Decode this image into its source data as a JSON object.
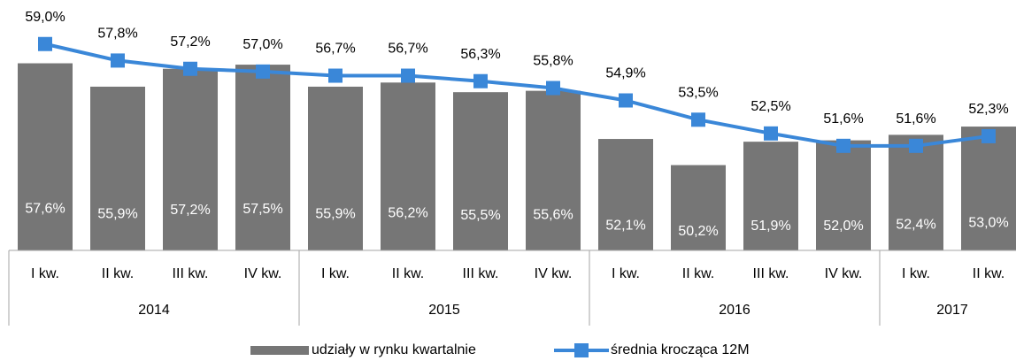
{
  "chart_data": {
    "type": "bar",
    "groups": [
      {
        "name": "2014",
        "categories": [
          "I kw.",
          "II kw.",
          "III kw.",
          "IV kw."
        ]
      },
      {
        "name": "2015",
        "categories": [
          "I kw.",
          "II kw.",
          "III kw.",
          "IV kw."
        ]
      },
      {
        "name": "2016",
        "categories": [
          "I kw.",
          "II kw.",
          "III kw.",
          "IV kw."
        ]
      },
      {
        "name": "2017",
        "categories": [
          "I kw.",
          "II kw."
        ]
      }
    ],
    "series": [
      {
        "name": "udziały w rynku kwartalnie",
        "type": "bar",
        "color": "#767676",
        "values": [
          57.6,
          55.9,
          57.2,
          57.5,
          55.9,
          56.2,
          55.5,
          55.6,
          52.1,
          50.2,
          51.9,
          52.0,
          52.4,
          53.0
        ],
        "value_labels": [
          "57,6%",
          "55,9%",
          "57,2%",
          "57,5%",
          "55,9%",
          "56,2%",
          "55,5%",
          "55,6%",
          "52,1%",
          "50,2%",
          "51,9%",
          "52,0%",
          "52,4%",
          "53,0%"
        ]
      },
      {
        "name": "średnia krocząca 12M",
        "type": "line",
        "color": "#3a87d8",
        "values": [
          59.0,
          57.8,
          57.2,
          57.0,
          56.7,
          56.7,
          56.3,
          55.8,
          54.9,
          53.5,
          52.5,
          51.6,
          51.6,
          52.3
        ],
        "value_labels": [
          "59,0%",
          "57,8%",
          "57,2%",
          "57,0%",
          "56,7%",
          "56,7%",
          "56,3%",
          "55,8%",
          "54,9%",
          "53,5%",
          "52,5%",
          "51,6%",
          "51,6%",
          "52,3%"
        ]
      }
    ],
    "ylim": [
      44,
      62.2
    ],
    "legend": "bottom"
  }
}
